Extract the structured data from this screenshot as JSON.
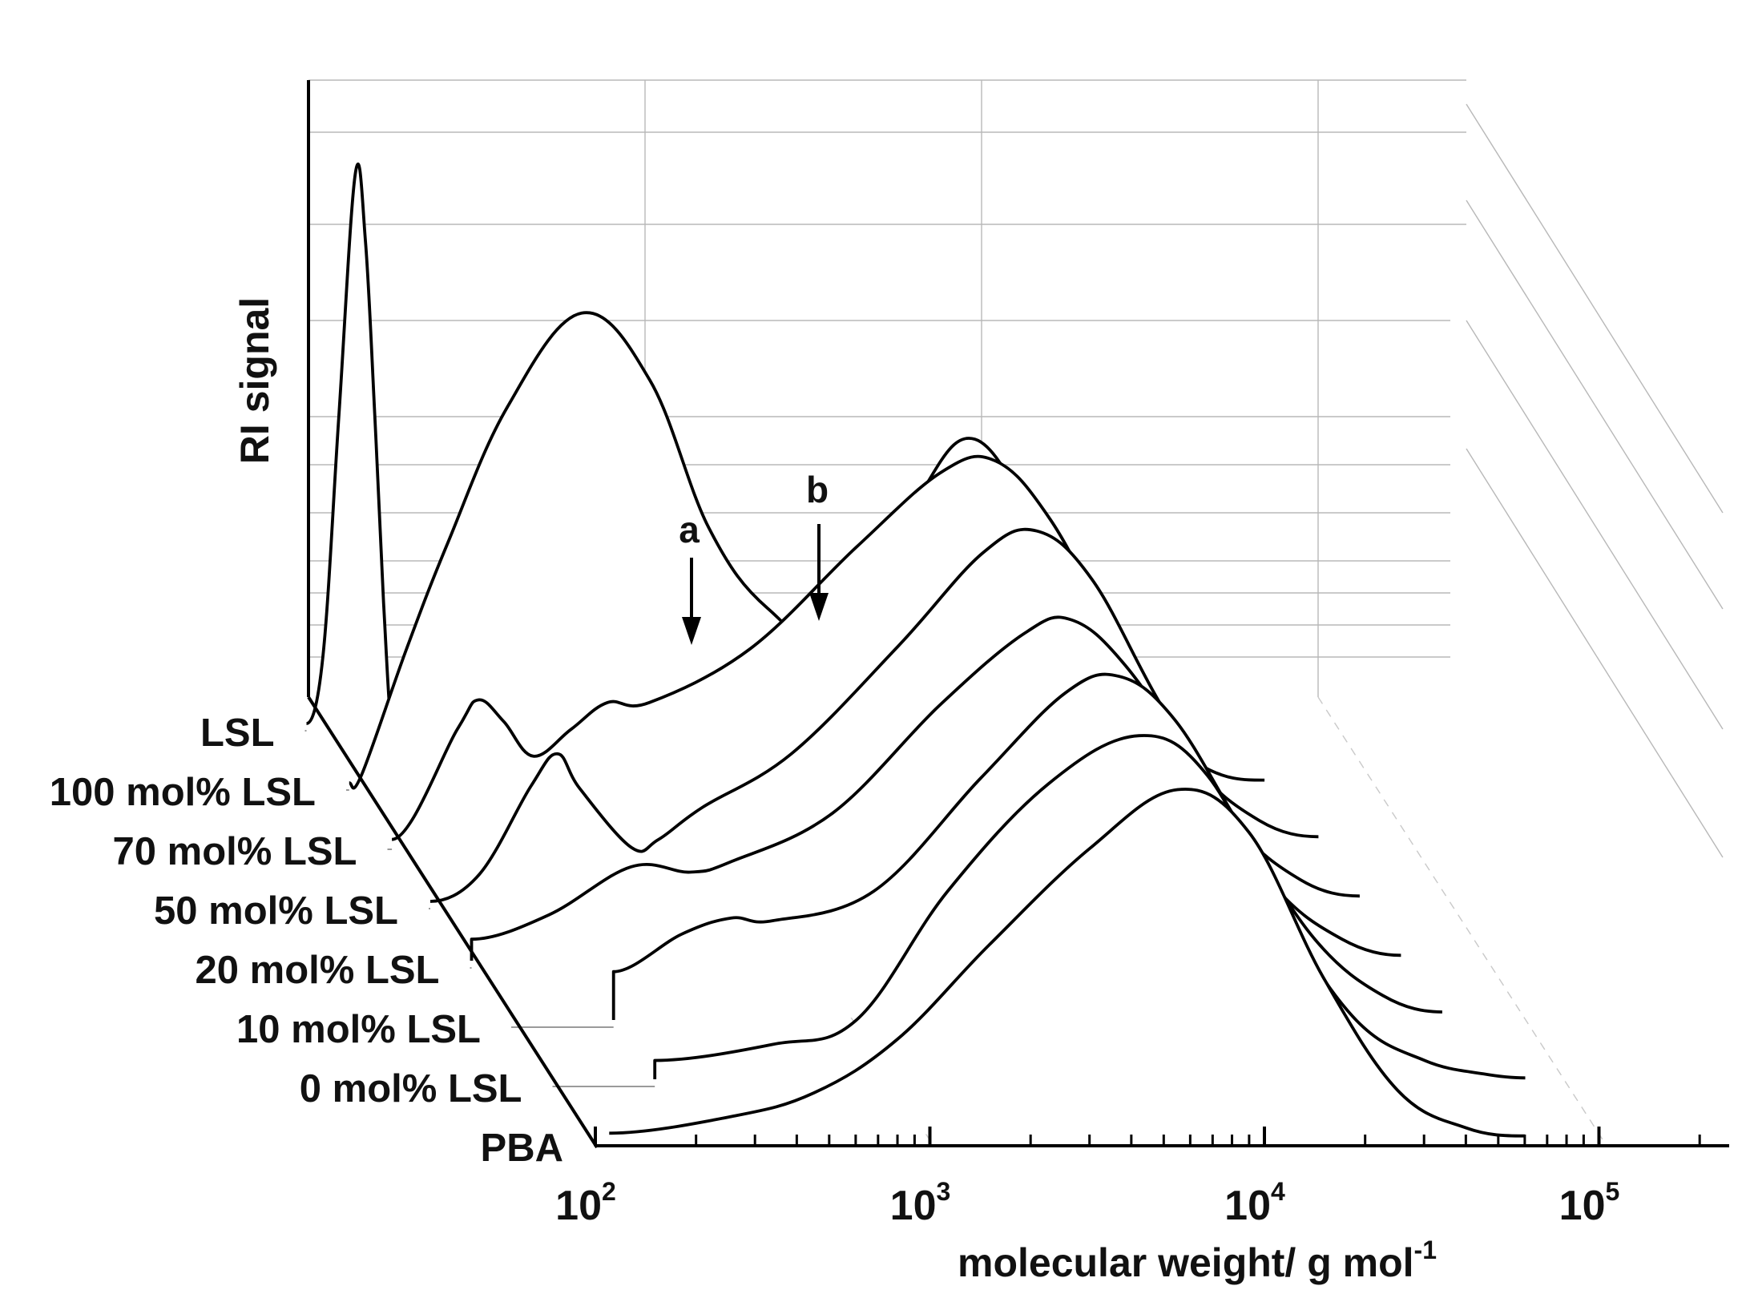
{
  "chart_data": {
    "type": "line",
    "subtype": "3d-waterfall",
    "title": "",
    "xlabel": "molecular weight/ g mol",
    "xlabel_superscript": "-1",
    "ylabel": "RI signal",
    "xscale": "log",
    "xlim": [
      100,
      250000
    ],
    "x_ticks": [
      {
        "value": 100,
        "base": "10",
        "exp": "2"
      },
      {
        "value": 1000,
        "base": "10",
        "exp": "3"
      },
      {
        "value": 10000,
        "base": "10",
        "exp": "4"
      },
      {
        "value": 100000,
        "base": "10",
        "exp": "5"
      }
    ],
    "series": [
      {
        "name": "PBA",
        "segments": [
          {
            "x": [
              110,
              250,
              450,
              800,
              1500,
              3000,
              5500,
              9000,
              15000,
              25000,
              40000,
              60000
            ],
            "y": [
              0.02,
              0.08,
              0.17,
              0.37,
              0.72,
              1.08,
              1.3,
              1.14,
              0.6,
              0.18,
              0.04,
              0.01
            ]
          }
        ]
      },
      {
        "name": "0 mol% LSL",
        "segments": [
          {
            "x": [
              200,
              200,
              450,
              800,
              1500,
              3000,
              5600,
              9000,
              15000,
              25000,
              40000,
              60000,
              80000
            ],
            "y": [
              0.0,
              0.07,
              0.13,
              0.22,
              0.7,
              1.1,
              1.28,
              1.13,
              0.62,
              0.22,
              0.07,
              0.02,
              0.005
            ]
          }
        ]
      },
      {
        "name": "10 mol% LSL",
        "segments": [
          {
            "x": [
              200,
              200,
              320,
              450,
              600,
              1200,
              2500,
              4500,
              6500,
              9500,
              15000,
              25000,
              40000,
              60000
            ],
            "y": [
              0.0,
              0.18,
              0.32,
              0.38,
              0.37,
              0.48,
              0.9,
              1.22,
              1.28,
              1.12,
              0.72,
              0.3,
              0.09,
              0.03
            ]
          }
        ]
      },
      {
        "name": "20 mol% LSL",
        "segments": [
          {
            "x": [
              100,
              100,
              170,
              300,
              450,
              600,
              1200,
              2500,
              4500,
              6200,
              9000,
              15000,
              25000,
              40000,
              60000
            ],
            "y": [
              0.0,
              0.08,
              0.17,
              0.35,
              0.33,
              0.37,
              0.55,
              0.95,
              1.22,
              1.27,
              1.1,
              0.7,
              0.28,
              0.08,
              0.02
            ]
          }
        ]
      },
      {
        "name": "50 mol% LSL",
        "segments": [
          {
            "x": [
              100,
              140,
              200,
              240,
              280,
              400,
              480,
              650,
              1200,
              2500,
              4500,
              6500,
              9500,
              15000,
              25000,
              40000,
              60000
            ],
            "y": [
              0.0,
              0.1,
              0.43,
              0.55,
              0.42,
              0.2,
              0.23,
              0.35,
              0.55,
              0.95,
              1.3,
              1.38,
              1.2,
              0.75,
              0.3,
              0.08,
              0.02
            ]
          }
        ]
      },
      {
        "name": "70 mol% LSL",
        "segments": [
          {
            "x": [
              102,
              160,
              185,
              220,
              270,
              350,
              450,
              600,
              1200,
              2500,
              4500,
              6500,
              9500,
              15000,
              25000,
              40000,
              60000
            ],
            "y": [
              0.01,
              0.42,
              0.53,
              0.45,
              0.32,
              0.42,
              0.52,
              0.52,
              0.72,
              1.1,
              1.38,
              1.42,
              1.2,
              0.75,
              0.3,
              0.08,
              0.02
            ]
          }
        ]
      },
      {
        "name": "100 mol% LSL",
        "segments": [
          {
            "x": [
              101,
              110,
              150,
              200,
              300,
              500,
              800,
              1200,
              1800,
              3000,
              5000,
              7500,
              12000,
              20000,
              35000,
              55000
            ],
            "y": [
              0.0,
              0.03,
              0.5,
              0.9,
              1.4,
              1.75,
              1.5,
              0.95,
              0.65,
              0.52,
              1.05,
              1.28,
              0.9,
              0.35,
              0.07,
              0.01
            ]
          }
        ]
      },
      {
        "name": "LSL",
        "segments": [
          {
            "x": [
              100,
              112,
              125,
              140,
              150,
              160,
              170,
              180
            ],
            "y": [
              0.0,
              0.25,
              1.15,
              2.05,
              1.8,
              1.15,
              0.45,
              0.0
            ]
          }
        ]
      }
    ]
  }
}
